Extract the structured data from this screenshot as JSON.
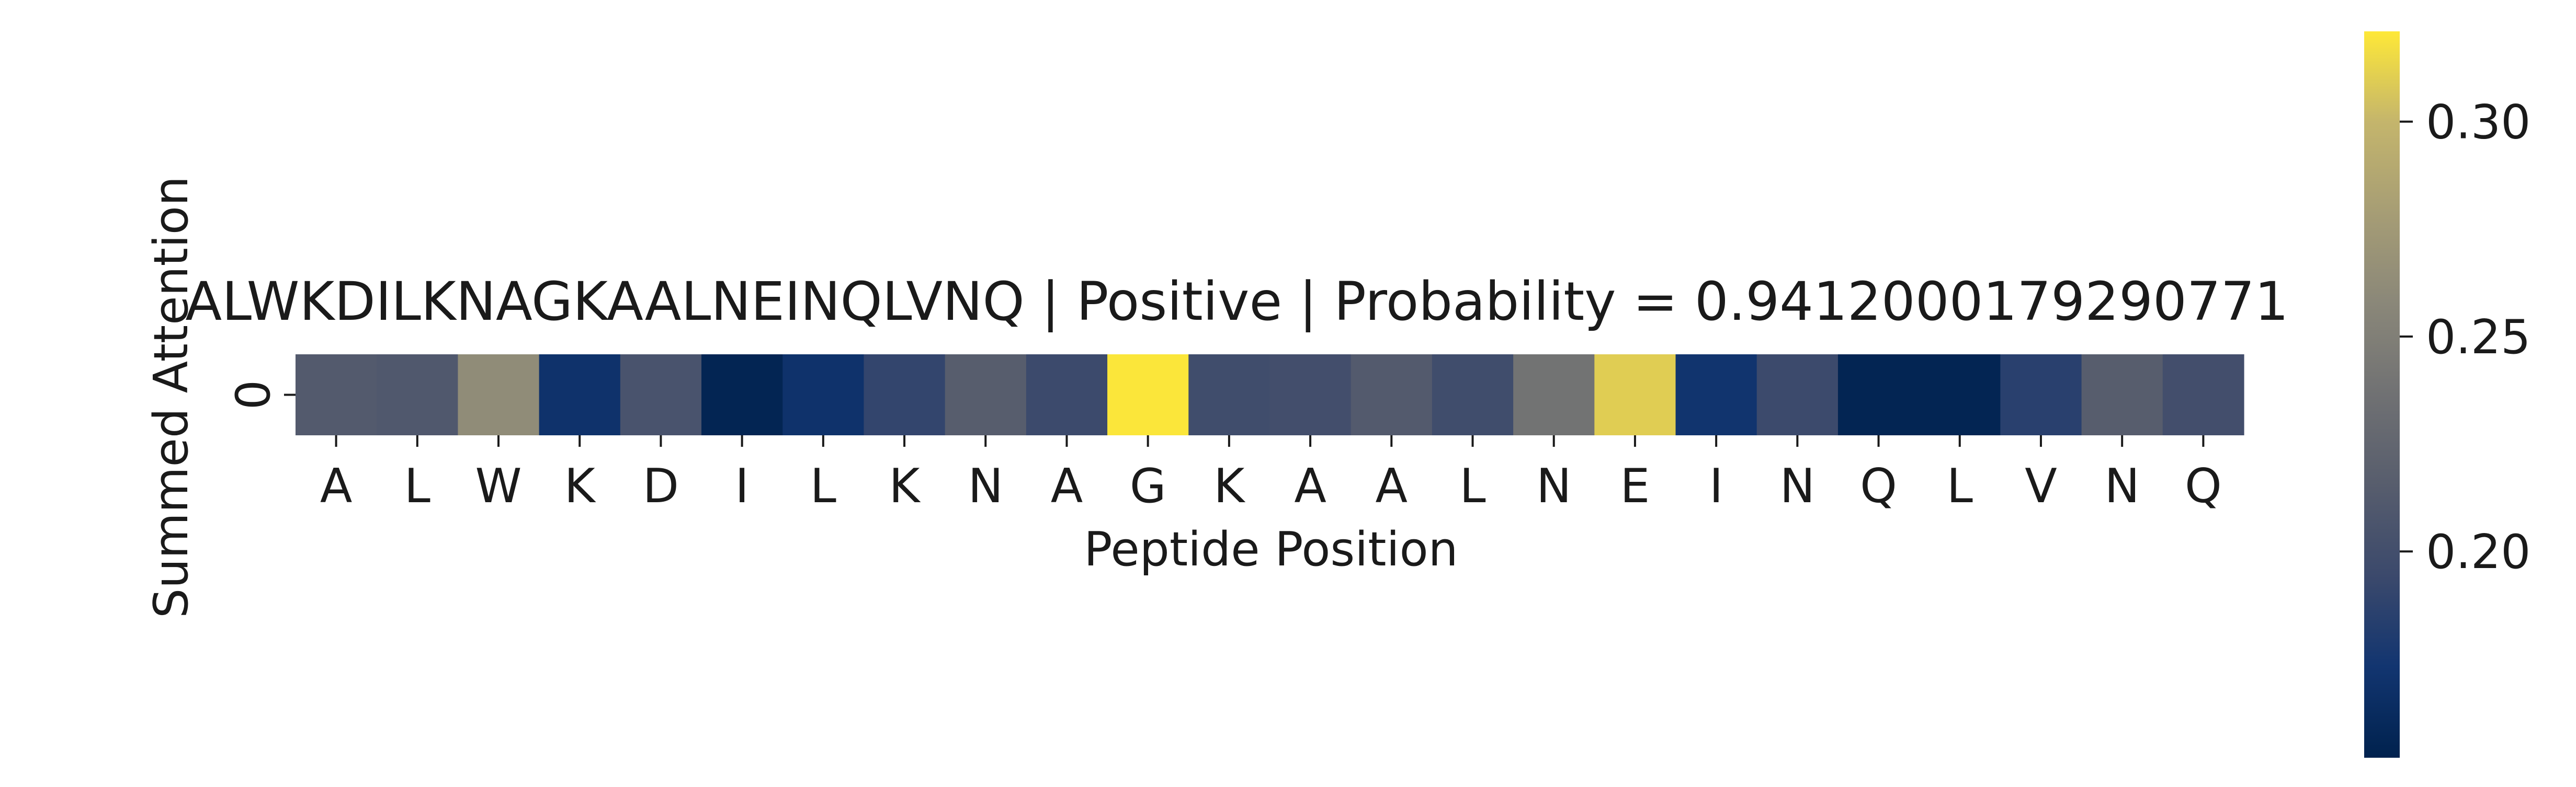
{
  "chart_data": {
    "type": "heatmap",
    "title": "ALWKDILKNAGKAALNEINQLVNQ | Positive | Probability = 0.9412000179290771",
    "xlabel": "Peptide Position",
    "ylabel": "Summed Attention",
    "x_categories": [
      "A",
      "L",
      "W",
      "K",
      "D",
      "I",
      "L",
      "K",
      "N",
      "A",
      "G",
      "K",
      "A",
      "A",
      "L",
      "N",
      "E",
      "I",
      "N",
      "Q",
      "L",
      "V",
      "N",
      "Q"
    ],
    "y_categories": [
      "0"
    ],
    "values": [
      [
        0.212,
        0.21,
        0.262,
        0.17,
        0.205,
        0.155,
        0.17,
        0.19,
        0.215,
        0.195,
        0.32,
        0.198,
        0.2,
        0.212,
        0.198,
        0.238,
        0.31,
        0.172,
        0.195,
        0.155,
        0.155,
        0.185,
        0.215,
        0.2
      ]
    ],
    "colorbar": {
      "colormap": "cividis",
      "vmin": 0.152,
      "vmax": 0.321,
      "ticks": [
        0.2,
        0.25,
        0.3
      ],
      "tick_labels": [
        "0.20",
        "0.25",
        "0.30"
      ]
    }
  }
}
